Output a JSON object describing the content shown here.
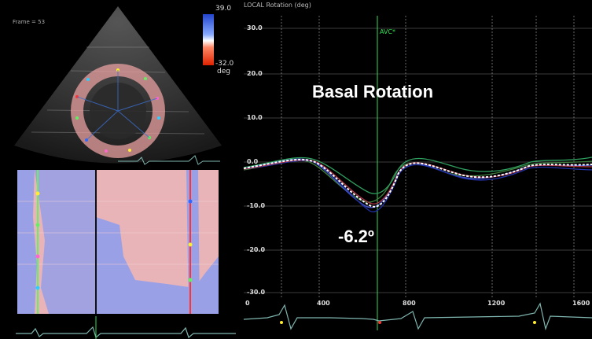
{
  "echo": {
    "frame_label": "Frame = 53",
    "colorbar_max": "39.0",
    "colorbar_min": "-32.0",
    "colorbar_unit": "deg"
  },
  "graph": {
    "header": "LOCAL  Rotation (deg)",
    "event_marker": "AVC*",
    "title": "Basal Rotation",
    "peak_annotation": "-6.2º",
    "y_ticks": [
      "30.0",
      "20.0",
      "10.0",
      "0.0",
      "-10.0",
      "-20.0",
      "-30.0"
    ],
    "x_ticks": [
      "0",
      "400",
      "800",
      "1200",
      "1600"
    ]
  },
  "colors": {
    "graph_grid": "#8a8a8a",
    "avc_line": "#33dd55",
    "mmode_pink": "#e8b4b8",
    "mmode_blue": "#9aa0e6",
    "ecg_trace": "#7fb7b0"
  }
}
